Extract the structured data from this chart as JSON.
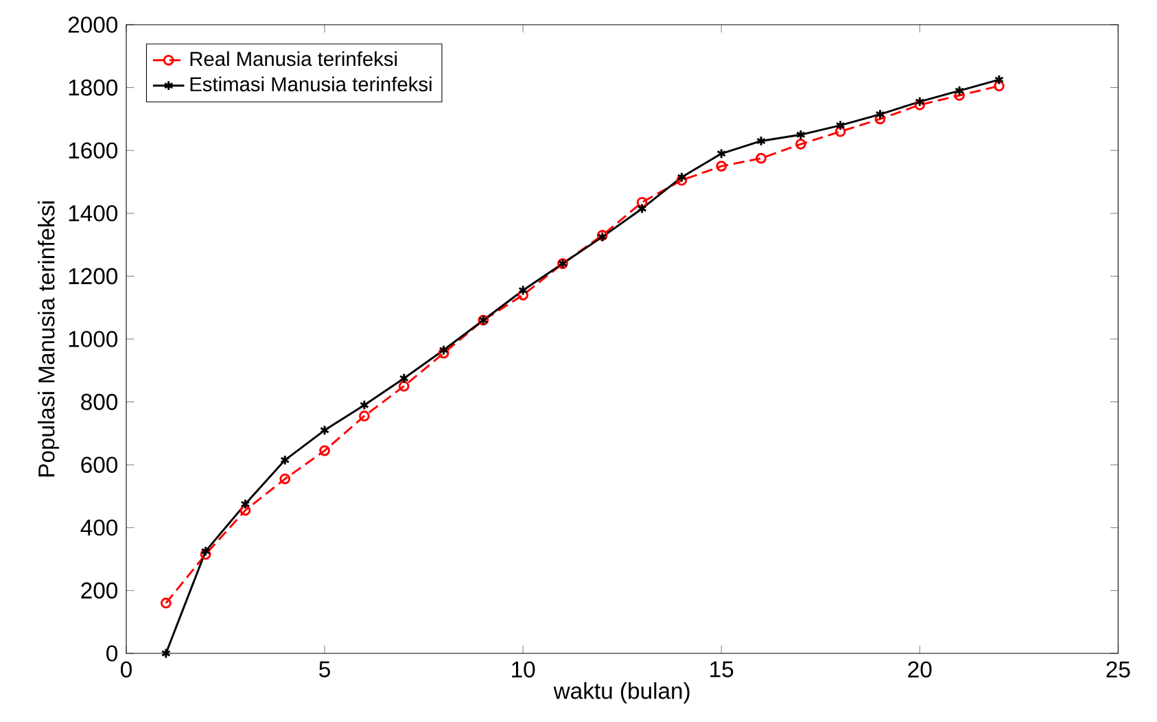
{
  "chart_data": {
    "type": "line",
    "xlabel": "waktu (bulan)",
    "ylabel": "Populasi Manusia terinfeksi",
    "x": [
      1,
      2,
      3,
      4,
      5,
      6,
      7,
      8,
      9,
      10,
      11,
      12,
      13,
      14,
      15,
      16,
      17,
      18,
      19,
      20,
      21,
      22
    ],
    "series": [
      {
        "name": "Real Manusia terinfeksi",
        "color": "#ff0000",
        "marker": "circle",
        "line_style": "dashed",
        "values": [
          160,
          315,
          455,
          555,
          645,
          755,
          850,
          955,
          1060,
          1140,
          1240,
          1330,
          1435,
          1505,
          1550,
          1575,
          1620,
          1660,
          1700,
          1745,
          1775,
          1805
        ]
      },
      {
        "name": "Estimasi Manusia terinfeksi",
        "color": "#000000",
        "marker": "cross",
        "line_style": "solid",
        "values": [
          0,
          325,
          475,
          615,
          710,
          790,
          875,
          965,
          1060,
          1155,
          1240,
          1325,
          1415,
          1515,
          1590,
          1630,
          1650,
          1680,
          1715,
          1755,
          1790,
          1825
        ]
      }
    ],
    "xlim": [
      0,
      25
    ],
    "ylim": [
      0,
      2000
    ],
    "xticks": [
      0,
      5,
      10,
      15,
      20,
      25
    ],
    "yticks": [
      0,
      200,
      400,
      600,
      800,
      1000,
      1200,
      1400,
      1600,
      1800,
      2000
    ],
    "grid": false,
    "legend": "top left"
  }
}
